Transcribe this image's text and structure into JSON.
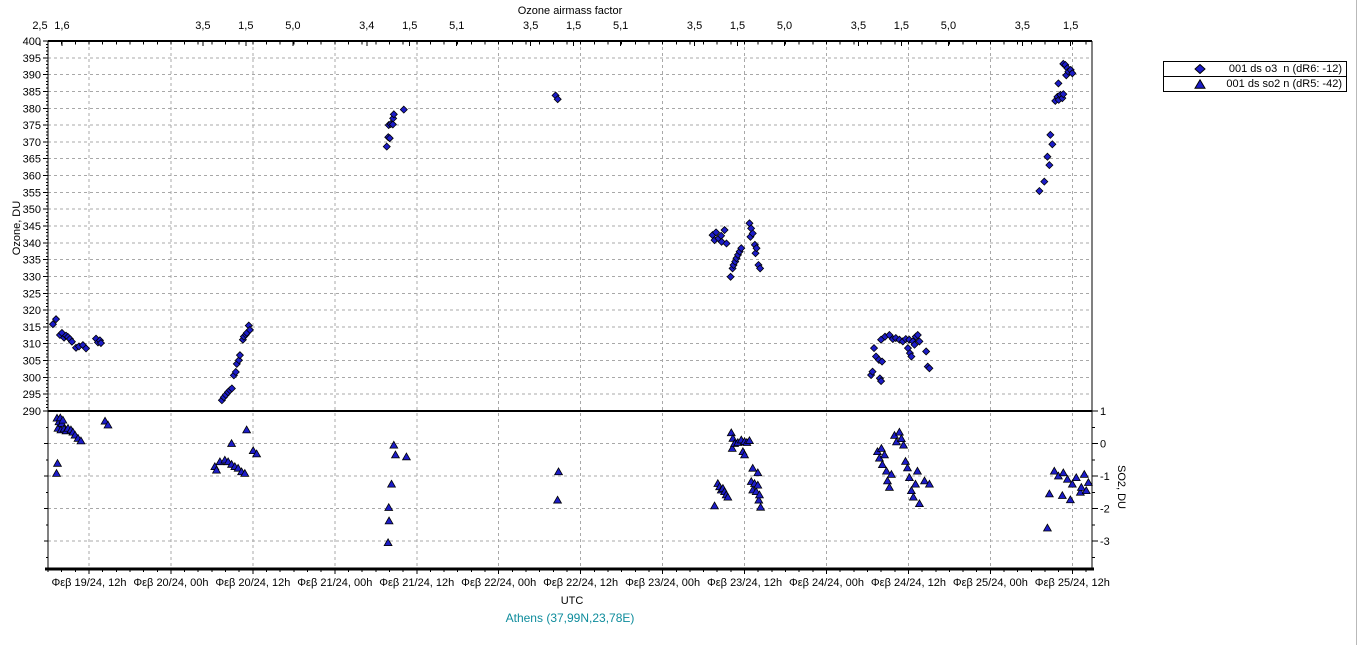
{
  "colors": {
    "marker": "#1c1cc8",
    "grid": "#a8a8a8",
    "axis": "#000000",
    "footer_teal": "#0e8c9c",
    "panel_edge": "#b9b9b9"
  },
  "footer": {
    "station": "Athens (37,99N,23,78E)"
  },
  "chart_data": {
    "type": "scatter",
    "grid": "dashed",
    "legend_position": "top-right-outside",
    "top_axis": {
      "title": "Ozone airmass factor",
      "labels": [
        {
          "x": 0.201,
          "text": "2,5"
        },
        {
          "x": 0.335,
          "text": "1,6"
        },
        {
          "x": 1.195,
          "text": "3,5"
        },
        {
          "x": 1.457,
          "text": "1,5"
        },
        {
          "x": 1.744,
          "text": "5,0"
        },
        {
          "x": 2.195,
          "text": "3,4"
        },
        {
          "x": 2.457,
          "text": "1,5"
        },
        {
          "x": 2.744,
          "text": "5,1"
        },
        {
          "x": 3.195,
          "text": "3,5"
        },
        {
          "x": 3.457,
          "text": "1,5"
        },
        {
          "x": 3.744,
          "text": "5,1"
        },
        {
          "x": 4.195,
          "text": "3,5"
        },
        {
          "x": 4.457,
          "text": "1,5"
        },
        {
          "x": 4.744,
          "text": "5,0"
        },
        {
          "x": 5.195,
          "text": "3,5"
        },
        {
          "x": 5.457,
          "text": "1,5"
        },
        {
          "x": 5.744,
          "text": "5,0"
        },
        {
          "x": 6.195,
          "text": "3,5"
        },
        {
          "x": 6.49,
          "text": "1,5"
        }
      ]
    },
    "x_axis": {
      "title": "UTC",
      "domain_days": [
        0.25,
        6.62
      ],
      "ticks": [
        {
          "x": 0.5,
          "label": "Φεβ 19/24, 12h"
        },
        {
          "x": 1.0,
          "label": "Φεβ 20/24, 00h"
        },
        {
          "x": 1.5,
          "label": "Φεβ 20/24, 12h"
        },
        {
          "x": 2.0,
          "label": "Φεβ 21/24, 00h"
        },
        {
          "x": 2.5,
          "label": "Φεβ 21/24, 12h"
        },
        {
          "x": 3.0,
          "label": "Φεβ 22/24, 00h"
        },
        {
          "x": 3.5,
          "label": "Φεβ 22/24, 12h"
        },
        {
          "x": 4.0,
          "label": "Φεβ 23/24, 00h"
        },
        {
          "x": 4.5,
          "label": "Φεβ 23/24, 12h"
        },
        {
          "x": 5.0,
          "label": "Φεβ 24/24, 00h"
        },
        {
          "x": 5.5,
          "label": "Φεβ 24/24, 12h"
        },
        {
          "x": 6.0,
          "label": "Φεβ 25/24, 00h"
        },
        {
          "x": 6.5,
          "label": "Φεβ 25/24, 12h"
        }
      ]
    },
    "y_left": {
      "title": "Ozone, DU",
      "range": [
        290,
        400
      ],
      "tick_step": 5,
      "ticks": [
        400,
        395,
        390,
        385,
        380,
        375,
        370,
        365,
        360,
        355,
        350,
        345,
        340,
        335,
        330,
        325,
        320,
        315,
        310,
        305,
        300,
        295,
        290
      ]
    },
    "y_right": {
      "title": "SO2, DU",
      "range_visible": [
        -3.87,
        1
      ],
      "ticks": [
        1,
        0,
        -1,
        -2,
        -3
      ]
    },
    "series": [
      {
        "name": "001 ds o3  n (dR6: -12)",
        "marker": "diamond",
        "panel": "ozone",
        "points": [
          [
            0.28,
            315.8
          ],
          [
            0.299,
            317.3
          ],
          [
            0.323,
            312.6
          ],
          [
            0.335,
            313.2
          ],
          [
            0.348,
            311.8
          ],
          [
            0.36,
            312.4
          ],
          [
            0.372,
            312.0
          ],
          [
            0.384,
            311.4
          ],
          [
            0.396,
            310.6
          ],
          [
            0.421,
            308.8
          ],
          [
            0.439,
            309.2
          ],
          [
            0.463,
            309.6
          ],
          [
            0.482,
            308.6
          ],
          [
            0.543,
            311.5
          ],
          [
            0.555,
            310.4
          ],
          [
            0.567,
            311.0
          ],
          [
            0.573,
            310.2
          ],
          [
            1.311,
            293.2
          ],
          [
            1.323,
            294.1
          ],
          [
            1.335,
            294.8
          ],
          [
            1.348,
            295.6
          ],
          [
            1.36,
            296.2
          ],
          [
            1.372,
            296.7
          ],
          [
            1.384,
            300.6
          ],
          [
            1.396,
            301.6
          ],
          [
            1.402,
            304.0
          ],
          [
            1.415,
            305.1
          ],
          [
            1.421,
            306.6
          ],
          [
            1.439,
            311.2
          ],
          [
            1.445,
            312.1
          ],
          [
            1.457,
            312.7
          ],
          [
            1.463,
            313.2
          ],
          [
            1.475,
            315.4
          ],
          [
            1.482,
            314.1
          ],
          [
            2.317,
            368.6
          ],
          [
            2.326,
            371.4
          ],
          [
            2.335,
            371.1
          ],
          [
            2.329,
            375.0
          ],
          [
            2.341,
            375.3
          ],
          [
            2.354,
            375.2
          ],
          [
            2.356,
            377.0
          ],
          [
            2.36,
            378.2
          ],
          [
            2.421,
            379.6
          ],
          [
            3.347,
            383.8
          ],
          [
            3.36,
            382.7
          ],
          [
            4.305,
            342.3
          ],
          [
            4.317,
            340.8
          ],
          [
            4.326,
            343.1
          ],
          [
            4.341,
            341.3
          ],
          [
            4.357,
            342.1
          ],
          [
            4.36,
            340.3
          ],
          [
            4.378,
            343.8
          ],
          [
            4.39,
            339.8
          ],
          [
            4.415,
            329.9
          ],
          [
            4.427,
            332.4
          ],
          [
            4.433,
            333.4
          ],
          [
            4.443,
            334.4
          ],
          [
            4.451,
            335.4
          ],
          [
            4.46,
            336.4
          ],
          [
            4.47,
            337.4
          ],
          [
            4.48,
            338.4
          ],
          [
            4.53,
            345.8
          ],
          [
            4.536,
            341.8
          ],
          [
            4.54,
            344.3
          ],
          [
            4.55,
            342.8
          ],
          [
            4.563,
            339.4
          ],
          [
            4.567,
            336.9
          ],
          [
            4.573,
            338.4
          ],
          [
            4.585,
            333.4
          ],
          [
            4.595,
            332.4
          ],
          [
            5.272,
            300.7
          ],
          [
            5.281,
            301.7
          ],
          [
            5.29,
            308.7
          ],
          [
            5.302,
            306.2
          ],
          [
            5.32,
            305.2
          ],
          [
            5.326,
            299.7
          ],
          [
            5.333,
            298.9
          ],
          [
            5.339,
            304.7
          ],
          [
            5.333,
            311.2
          ],
          [
            5.357,
            312.1
          ],
          [
            5.384,
            312.6
          ],
          [
            5.405,
            311.4
          ],
          [
            5.423,
            311.7
          ],
          [
            5.445,
            311.2
          ],
          [
            5.466,
            310.7
          ],
          [
            5.484,
            311.4
          ],
          [
            5.505,
            311.2
          ],
          [
            5.527,
            310.7
          ],
          [
            5.545,
            312.1
          ],
          [
            5.557,
            312.6
          ],
          [
            5.567,
            310.7
          ],
          [
            5.537,
            309.7
          ],
          [
            5.497,
            308.7
          ],
          [
            5.509,
            307.2
          ],
          [
            5.518,
            306.2
          ],
          [
            5.608,
            307.7
          ],
          [
            5.618,
            303.2
          ],
          [
            5.628,
            302.7
          ],
          [
            6.299,
            355.4
          ],
          [
            6.329,
            358.2
          ],
          [
            6.348,
            365.6
          ],
          [
            6.36,
            363.1
          ],
          [
            6.366,
            372.1
          ],
          [
            6.378,
            369.3
          ],
          [
            6.396,
            382.2
          ],
          [
            6.409,
            383.4
          ],
          [
            6.415,
            387.4
          ],
          [
            6.417,
            382.5
          ],
          [
            6.427,
            384.0
          ],
          [
            6.439,
            383.0
          ],
          [
            6.445,
            384.2
          ],
          [
            6.445,
            393.2
          ],
          [
            6.457,
            392.9
          ],
          [
            6.463,
            389.8
          ],
          [
            6.47,
            391.9
          ],
          [
            6.476,
            390.9
          ],
          [
            6.49,
            391.4
          ],
          [
            6.5,
            390.4
          ]
        ]
      },
      {
        "name": "001 ds so2 n (dR5: -42)",
        "marker": "triangle",
        "panel": "so2",
        "points": [
          [
            0.305,
            0.78
          ],
          [
            0.311,
            0.47
          ],
          [
            0.317,
            0.67
          ],
          [
            0.325,
            0.79
          ],
          [
            0.329,
            0.42
          ],
          [
            0.335,
            0.62
          ],
          [
            0.341,
            0.72
          ],
          [
            0.348,
            0.45
          ],
          [
            0.36,
            0.39
          ],
          [
            0.372,
            0.47
          ],
          [
            0.39,
            0.42
          ],
          [
            0.402,
            0.35
          ],
          [
            0.415,
            0.26
          ],
          [
            0.433,
            0.16
          ],
          [
            0.451,
            0.08
          ],
          [
            0.308,
            -0.61
          ],
          [
            0.302,
            -0.92
          ],
          [
            0.598,
            0.69
          ],
          [
            0.616,
            0.57
          ],
          [
            1.268,
            -0.71
          ],
          [
            1.278,
            -0.82
          ],
          [
            1.299,
            -0.56
          ],
          [
            1.329,
            -0.51
          ],
          [
            1.349,
            -0.56
          ],
          [
            1.37,
            -0.64
          ],
          [
            1.39,
            -0.71
          ],
          [
            1.41,
            -0.76
          ],
          [
            1.431,
            -0.87
          ],
          [
            1.451,
            -0.92
          ],
          [
            1.37,
            0.0
          ],
          [
            1.462,
            0.42
          ],
          [
            1.502,
            -0.22
          ],
          [
            1.523,
            -0.32
          ],
          [
            2.325,
            -3.05
          ],
          [
            2.329,
            -1.97
          ],
          [
            2.331,
            -2.38
          ],
          [
            2.346,
            -1.25
          ],
          [
            2.36,
            -0.05
          ],
          [
            2.37,
            -0.35
          ],
          [
            2.437,
            -0.41
          ],
          [
            3.359,
            -1.74
          ],
          [
            3.365,
            -0.87
          ],
          [
            4.317,
            -1.92
          ],
          [
            4.337,
            -1.23
          ],
          [
            4.348,
            -1.33
          ],
          [
            4.358,
            -1.43
          ],
          [
            4.368,
            -1.38
          ],
          [
            4.378,
            -1.48
          ],
          [
            4.388,
            -1.58
          ],
          [
            4.398,
            -1.65
          ],
          [
            4.419,
            0.33
          ],
          [
            4.425,
            -0.15
          ],
          [
            4.429,
            0.16
          ],
          [
            4.439,
            0.0
          ],
          [
            4.459,
            0.03
          ],
          [
            4.48,
            0.11
          ],
          [
            4.49,
            -0.25
          ],
          [
            4.5,
            0.06
          ],
          [
            4.5,
            -0.35
          ],
          [
            4.514,
            0.03
          ],
          [
            4.53,
            0.09
          ],
          [
            4.541,
            -1.17
          ],
          [
            4.55,
            -0.76
          ],
          [
            4.55,
            -1.43
          ],
          [
            4.561,
            -1.23
          ],
          [
            4.571,
            -1.48
          ],
          [
            4.581,
            -0.9
          ],
          [
            4.581,
            -1.28
          ],
          [
            4.587,
            -1.74
          ],
          [
            4.591,
            -1.58
          ],
          [
            4.598,
            -1.96
          ],
          [
            5.311,
            -0.25
          ],
          [
            5.323,
            -0.45
          ],
          [
            5.335,
            -0.15
          ],
          [
            5.341,
            -0.65
          ],
          [
            5.354,
            -0.35
          ],
          [
            5.366,
            -0.85
          ],
          [
            5.372,
            -1.15
          ],
          [
            5.384,
            -1.35
          ],
          [
            5.396,
            -0.95
          ],
          [
            5.415,
            0.25
          ],
          [
            5.427,
            0.05
          ],
          [
            5.445,
            0.35
          ],
          [
            5.457,
            0.15
          ],
          [
            5.47,
            -0.05
          ],
          [
            5.482,
            -0.55
          ],
          [
            5.494,
            -0.75
          ],
          [
            5.506,
            -1.05
          ],
          [
            5.518,
            -1.45
          ],
          [
            5.53,
            -1.65
          ],
          [
            5.543,
            -1.25
          ],
          [
            5.555,
            -0.85
          ],
          [
            5.567,
            -1.85
          ],
          [
            5.598,
            -1.15
          ],
          [
            5.628,
            -1.25
          ],
          [
            6.348,
            -2.6
          ],
          [
            6.36,
            -1.55
          ],
          [
            6.39,
            -0.85
          ],
          [
            6.415,
            -1.0
          ],
          [
            6.439,
            -1.6
          ],
          [
            6.445,
            -0.9
          ],
          [
            6.47,
            -1.1
          ],
          [
            6.488,
            -1.73
          ],
          [
            6.5,
            -1.25
          ],
          [
            6.524,
            -1.05
          ],
          [
            6.549,
            -1.5
          ],
          [
            6.555,
            -1.35
          ],
          [
            6.573,
            -0.95
          ],
          [
            6.585,
            -1.45
          ],
          [
            6.598,
            -1.2
          ]
        ]
      }
    ]
  }
}
